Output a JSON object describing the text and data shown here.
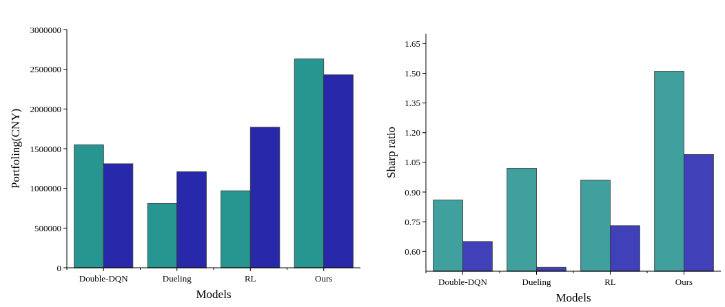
{
  "chart_data": [
    {
      "type": "bar",
      "xlabel": "Models",
      "ylabel": "Portfoling(CNY)",
      "categories": [
        "Double-DQN",
        "Dueling",
        "RL",
        "Ours"
      ],
      "series": [
        {
          "color": "#279590",
          "values": [
            1550000,
            810000,
            970000,
            2630000
          ]
        },
        {
          "color": "#2828aa",
          "values": [
            1310000,
            1210000,
            1770000,
            2430000
          ]
        }
      ],
      "ylim": [
        0,
        3000000
      ],
      "yticks": [
        0,
        500000,
        1000000,
        1500000,
        2000000,
        2500000,
        3000000
      ],
      "grid": false
    },
    {
      "type": "bar",
      "xlabel": "Models",
      "ylabel": "Sharp ratio",
      "categories": [
        "Double-DQN",
        "Dueling",
        "RL",
        "Ours"
      ],
      "series": [
        {
          "color": "#40a09e",
          "values": [
            0.86,
            1.02,
            0.96,
            1.51
          ]
        },
        {
          "color": "#4040b8",
          "values": [
            0.65,
            0.52,
            0.73,
            1.09
          ]
        }
      ],
      "ylim": [
        0.5,
        1.7
      ],
      "yticks": [
        {
          "value": 0.6,
          "label": "0.60"
        },
        {
          "value": 0.75,
          "label": "0.75"
        },
        {
          "value": 0.9,
          "label": "0.90"
        },
        {
          "value": 1.05,
          "label": "1.05"
        },
        {
          "value": 1.2,
          "label": "1.20"
        },
        {
          "value": 1.35,
          "label": "1.35"
        },
        {
          "value": 1.5,
          "label": "1.50"
        },
        {
          "value": 1.65,
          "label": "1.65"
        }
      ],
      "grid": false
    }
  ]
}
